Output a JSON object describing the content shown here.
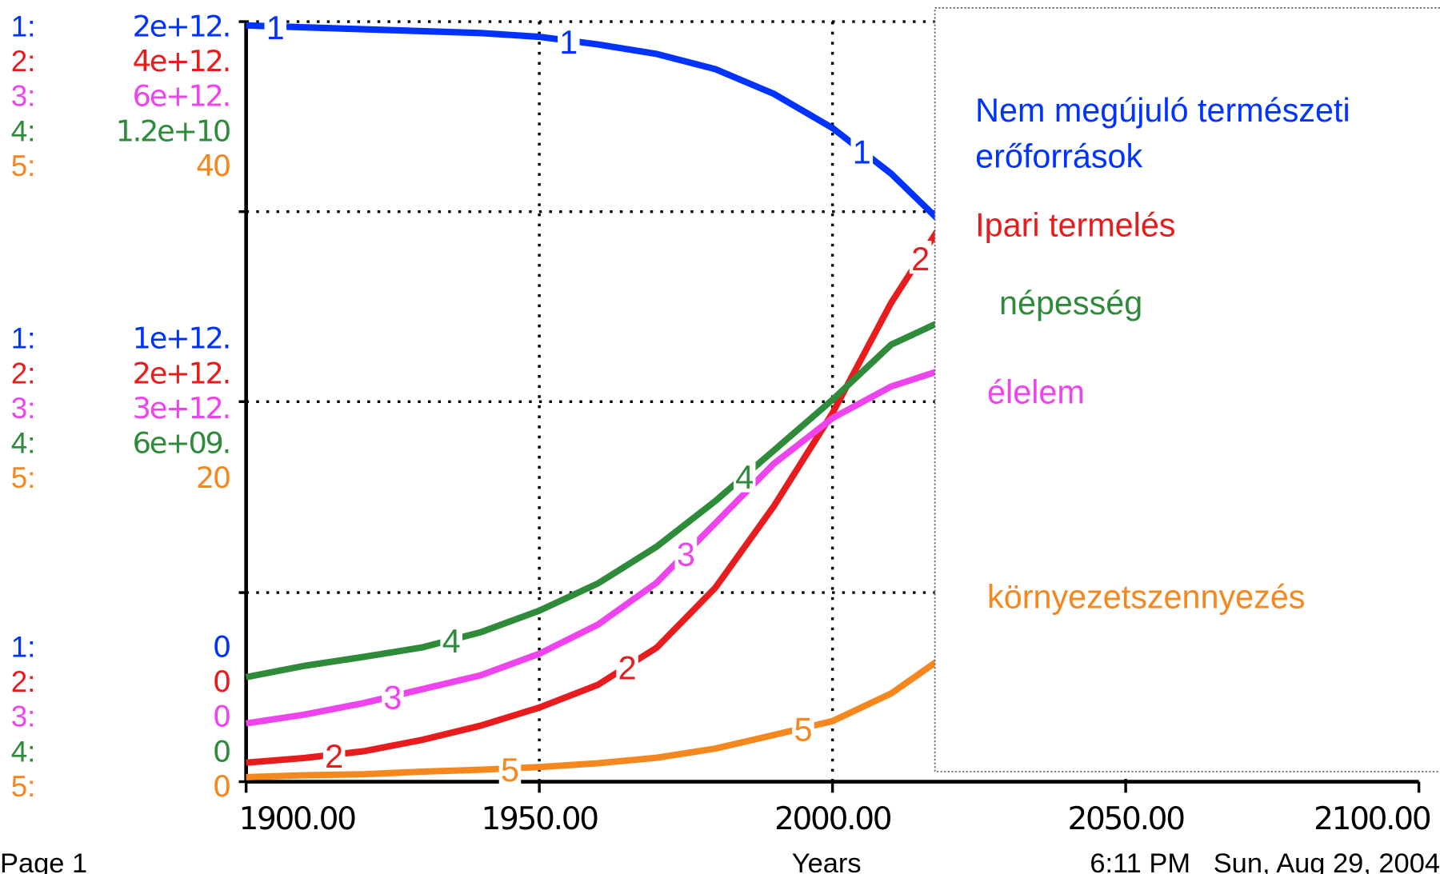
{
  "chart_data": {
    "type": "line",
    "x_label": "Years",
    "footer_left": "Page 1",
    "footer_right": "6:11 PM   Sun, Aug 29, 2004",
    "x": [
      1900,
      1910,
      1920,
      1930,
      1940,
      1950,
      1960,
      1970,
      1980,
      1990,
      2000,
      2010,
      2020
    ],
    "xlim": [
      1900,
      2100
    ],
    "xticks": [
      {
        "value": 1900,
        "label": "1900.00"
      },
      {
        "value": 1950,
        "label": "1950.00"
      },
      {
        "value": 2000,
        "label": "2000.00"
      },
      {
        "value": 2050,
        "label": "2050.00"
      },
      {
        "value": 2100,
        "label": "2100.00"
      }
    ],
    "grid": true,
    "series": [
      {
        "name": "Nem megújuló természeti erőforrások",
        "key": "1:",
        "marker": "1",
        "color": "#0033ff",
        "ylim": [
          0,
          2000000000000
        ],
        "yticks": [
          0,
          {
            "value": 1000000000000,
            "label": "1e+12."
          },
          {
            "value": 2000000000000,
            "label": "2e+12."
          }
        ],
        "values": [
          1990000000000,
          1985000000000,
          1980000000000,
          1975000000000,
          1970000000000,
          1960000000000,
          1940000000000,
          1915000000000,
          1875000000000,
          1810000000000,
          1720000000000,
          1600000000000,
          1450000000000
        ]
      },
      {
        "name": "Ipari termelés",
        "key": "2:",
        "marker": "2",
        "color": "#e81c1c",
        "ylim": [
          0,
          4000000000000
        ],
        "yticks": [
          0,
          {
            "value": 2000000000000,
            "label": "2e+12."
          },
          {
            "value": 4000000000000,
            "label": "4e+12."
          }
        ],
        "values": [
          100000000000,
          125000000000,
          160000000000,
          220000000000,
          295000000000,
          390000000000,
          510000000000,
          705000000000,
          1020000000000,
          1450000000000,
          1940000000000,
          2520000000000,
          3000000000000
        ]
      },
      {
        "name": "élelem",
        "key": "3:",
        "marker": "3",
        "color": "#ee44ee",
        "ylim": [
          0,
          6000000000000
        ],
        "yticks": [
          0,
          {
            "value": 3000000000000,
            "label": "3e+12."
          },
          {
            "value": 6000000000000,
            "label": "6e+12."
          }
        ],
        "values": [
          460000000000,
          530000000000,
          620000000000,
          730000000000,
          840000000000,
          1010000000000,
          1240000000000,
          1570000000000,
          2040000000000,
          2510000000000,
          2870000000000,
          3120000000000,
          3270000000000
        ]
      },
      {
        "name": "népesség",
        "key": "4:",
        "marker": "4",
        "color": "#2e8b3a",
        "ylim": [
          0,
          12000000000
        ],
        "yticks": [
          0,
          {
            "value": 6000000000,
            "label": "6e+09."
          },
          {
            "value": 12000000000,
            "label": "1.2e+10"
          }
        ],
        "values": [
          1650000000,
          1830000000,
          1970000000,
          2120000000,
          2360000000,
          2700000000,
          3130000000,
          3710000000,
          4430000000,
          5230000000,
          6030000000,
          6900000000,
          7330000000
        ]
      },
      {
        "name": "környezetszennyezés",
        "key": "5:",
        "marker": "5",
        "color": "#f5871f",
        "ylim": [
          0,
          40
        ],
        "yticks": [
          0,
          20,
          40
        ],
        "values": [
          0.24,
          0.34,
          0.39,
          0.53,
          0.63,
          0.77,
          0.97,
          1.26,
          1.74,
          2.46,
          3.19,
          4.64,
          6.8
        ]
      }
    ]
  }
}
